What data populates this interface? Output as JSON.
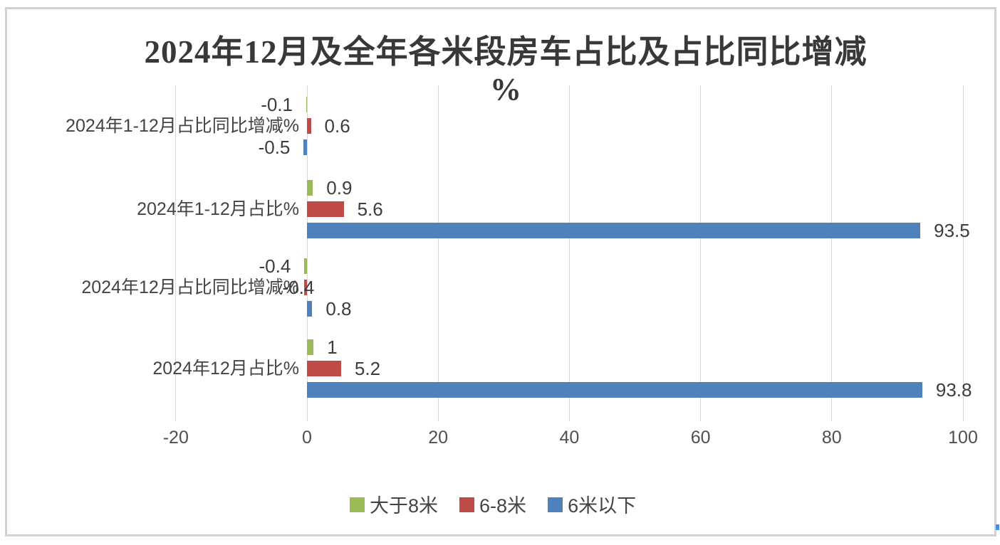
{
  "chart_data": {
    "type": "bar",
    "orientation": "horizontal",
    "title": "2024年12月及全年各米段房车占比及占比同比增减%",
    "title_line1": "2024年12月及全年各米段房车占比及占比同比增减",
    "title_line2": "%",
    "categories": [
      "2024年1-12月占比同比增减%",
      "2024年1-12月占比%",
      "2024年12月占比同比增减%",
      "2024年12月占比%"
    ],
    "category_order": "top-to-bottom",
    "series": [
      {
        "name": "大于8米",
        "color": "#9BBB59",
        "values": [
          -0.1,
          0.9,
          -0.4,
          1
        ],
        "labels": [
          "-0.1",
          "0.9",
          "-0.4",
          "1"
        ]
      },
      {
        "name": "6-8米",
        "color": "#BE4B48",
        "values": [
          0.6,
          5.6,
          -0.4,
          5.2
        ],
        "labels": [
          "0.6",
          "5.6",
          "-0.4",
          "5.2"
        ]
      },
      {
        "name": "6米以下",
        "color": "#4F81BD",
        "values": [
          -0.5,
          93.5,
          0.8,
          93.8
        ],
        "labels": [
          "-0.5",
          "93.5",
          "0.8",
          "93.8"
        ]
      }
    ],
    "xlabel": "",
    "xlim": [
      -20,
      100
    ],
    "xticks": [
      {
        "value": -20,
        "label": "-20"
      },
      {
        "value": 0,
        "label": "0"
      },
      {
        "value": 20,
        "label": "20"
      },
      {
        "value": 40,
        "label": "40"
      },
      {
        "value": 60,
        "label": "60"
      },
      {
        "value": 80,
        "label": "80"
      },
      {
        "value": 100,
        "label": "100"
      }
    ],
    "gridlines": "vertical",
    "data_labels": true,
    "legend": {
      "position": "bottom"
    }
  },
  "colors": {
    "grid": "#D9D9D9",
    "frame_border": "#D2D2D2",
    "title_text": "#383838",
    "label_text": "#3D3D3D",
    "tick_text": "#4F4F4F",
    "artifact_blue": "#4493E4"
  }
}
